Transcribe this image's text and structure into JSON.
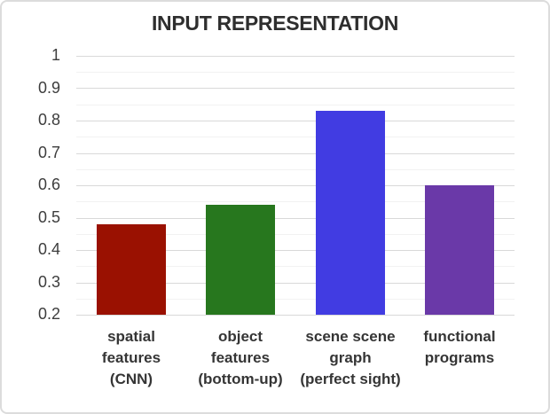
{
  "title": "INPUT REPRESENTATION",
  "chart_data": {
    "type": "bar",
    "title": "INPUT REPRESENTATION",
    "categories": [
      "spatial\nfeatures\n(CNN)",
      "object\nfeatures\n(bottom-up)",
      "scene scene\ngraph\n(perfect sight)",
      "functional\nprograms"
    ],
    "values": [
      0.48,
      0.54,
      0.83,
      0.6
    ],
    "bar_colors": [
      "#9a1101",
      "#27771e",
      "#413ce2",
      "#6a39a8"
    ],
    "xlabel": "",
    "ylabel": "",
    "ylim": [
      0.2,
      1.0
    ],
    "ytick_values": [
      1,
      0.9,
      0.8,
      0.7,
      0.6,
      0.5,
      0.4,
      0.3,
      0.2
    ],
    "ytick_labels": [
      "1",
      "0.9",
      "0.8",
      "0.7",
      "0.6",
      "0.5",
      "0.4",
      "0.3",
      "0.2"
    ],
    "minor_tick_step": 0.05,
    "grid": "major-and-minor-horizontal",
    "legend": "none"
  },
  "colors": {
    "background": "#ffffff",
    "frame_border": "#dcdcdc",
    "major_gridline": "#d9d9d9",
    "minor_gridline": "#f2f2f2",
    "title_text": "#2e2e2e",
    "axis_text": "#3d3d3d",
    "category_text": "#353535"
  }
}
